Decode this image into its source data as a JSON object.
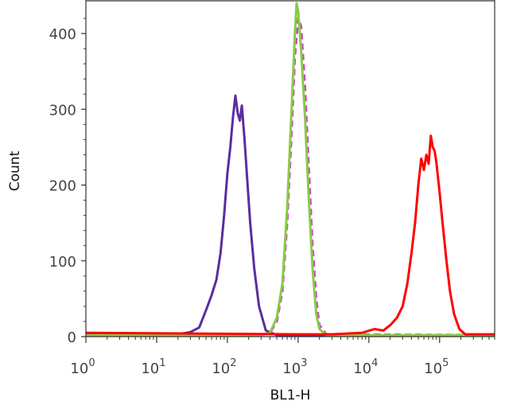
{
  "chart_data": {
    "type": "line",
    "xlabel": "BL1-H",
    "ylabel": "Count",
    "x_scale": "log",
    "xlim": [
      1,
      600000
    ],
    "ylim": [
      0,
      440
    ],
    "x_ticks": [
      {
        "value": 1,
        "base": "10",
        "exp": "0"
      },
      {
        "value": 10,
        "base": "10",
        "exp": "1"
      },
      {
        "value": 100,
        "base": "10",
        "exp": "2"
      },
      {
        "value": 1000,
        "base": "10",
        "exp": "3"
      },
      {
        "value": 10000,
        "base": "10",
        "exp": "4"
      },
      {
        "value": 100000,
        "base": "10",
        "exp": "5"
      }
    ],
    "y_ticks": [
      0,
      100,
      200,
      300,
      400
    ],
    "grid": false,
    "series": [
      {
        "color": "#5b2d9e",
        "dashed": false,
        "x": [
          1,
          20,
          30,
          40,
          50,
          60,
          70,
          80,
          90,
          100,
          110,
          120,
          130,
          140,
          150,
          160,
          175,
          190,
          210,
          240,
          280,
          350,
          500,
          10000,
          600000
        ],
        "y": [
          3,
          3,
          6,
          12,
          35,
          55,
          75,
          110,
          160,
          215,
          250,
          290,
          318,
          295,
          285,
          305,
          260,
          210,
          150,
          90,
          40,
          8,
          2,
          1,
          1
        ]
      },
      {
        "color": "#cc44cc",
        "dashed": true,
        "x": [
          1,
          300,
          400,
          500,
          600,
          700,
          800,
          900,
          1000,
          1100,
          1250,
          1400,
          1600,
          1800,
          2000,
          2500,
          600000
        ],
        "y": [
          2,
          2,
          5,
          20,
          60,
          150,
          260,
          370,
          420,
          410,
          330,
          230,
          120,
          50,
          15,
          3,
          2
        ]
      },
      {
        "color": "#88cc44",
        "dashed": false,
        "x": [
          1,
          300,
          400,
          500,
          600,
          700,
          800,
          900,
          950,
          1000,
          1100,
          1250,
          1400,
          1600,
          1800,
          2000,
          2500,
          600000
        ],
        "y": [
          2,
          2,
          5,
          25,
          70,
          170,
          290,
          400,
          440,
          430,
          380,
          290,
          190,
          90,
          30,
          10,
          2,
          2
        ]
      },
      {
        "color": "#ff0000",
        "dashed": false,
        "x": [
          1,
          1000,
          3000,
          8000,
          12000,
          16000,
          20000,
          25000,
          30000,
          35000,
          40000,
          45000,
          50000,
          55000,
          60000,
          65000,
          70000,
          75000,
          80000,
          85000,
          90000,
          100000,
          110000,
          125000,
          140000,
          160000,
          190000,
          230000,
          600000
        ],
        "y": [
          5,
          3,
          3,
          5,
          10,
          8,
          15,
          25,
          40,
          70,
          110,
          150,
          200,
          235,
          220,
          240,
          228,
          265,
          250,
          245,
          230,
          190,
          150,
          100,
          60,
          30,
          10,
          3,
          3
        ]
      }
    ]
  }
}
